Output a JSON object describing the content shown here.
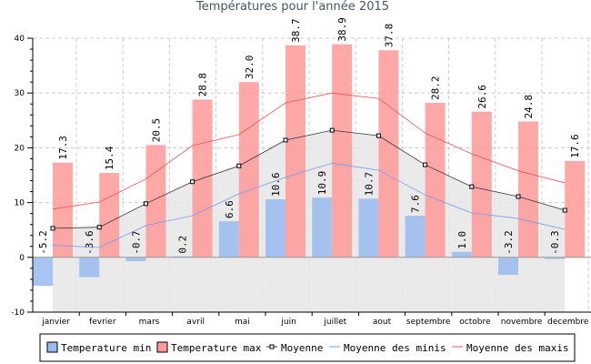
{
  "chart_data": {
    "type": "bar",
    "title": "Températures pour l'année 2015",
    "xlabel": "",
    "ylabel": "",
    "ylim": [
      -10,
      40
    ],
    "yticks": [
      "-10",
      "0",
      "10",
      "20",
      "30",
      "40"
    ],
    "grid": true,
    "legend_position": "bottom",
    "categories": [
      "janvier",
      "fevrier",
      "mars",
      "avril",
      "mai",
      "juin",
      "juillet",
      "aout",
      "septembre",
      "octobre",
      "novembre",
      "decembre"
    ],
    "series": [
      {
        "name": "Temperature min",
        "type": "bar",
        "color": "#99bbee",
        "values": [
          -5.2,
          -3.6,
          -0.7,
          0.2,
          6.6,
          10.6,
          10.9,
          10.7,
          7.6,
          1.0,
          -3.2,
          -0.3
        ],
        "labels": [
          "-5.2",
          "-3.6",
          "-0.7",
          "0.2",
          "6.6",
          "10.6",
          "10.9",
          "10.7",
          "7.6",
          "1.0",
          "-3.2",
          "-0.3"
        ]
      },
      {
        "name": "Temperature max",
        "type": "bar",
        "color": "#f99",
        "values": [
          17.3,
          15.4,
          20.5,
          28.8,
          32.0,
          38.7,
          38.9,
          37.8,
          28.2,
          26.6,
          24.8,
          17.6
        ],
        "labels": [
          "17.3",
          "15.4",
          "20.5",
          "28.8",
          "32.0",
          "38.7",
          "38.9",
          "37.8",
          "28.2",
          "26.6",
          "24.8",
          "17.6"
        ]
      },
      {
        "name": "Moyenne",
        "type": "line",
        "color": "#333",
        "values": [
          5.3,
          5.5,
          9.8,
          13.8,
          16.7,
          21.4,
          23.2,
          22.2,
          16.9,
          12.9,
          11.1,
          8.6
        ]
      },
      {
        "name": "Moyenne des minis",
        "type": "line",
        "color": "#7799ee",
        "values": [
          2.2,
          1.8,
          5.8,
          7.6,
          11.6,
          14.6,
          17.2,
          15.9,
          11.4,
          8.1,
          7.1,
          5.1
        ]
      },
      {
        "name": "Moyenne des maxis",
        "type": "line",
        "color": "#ee5555",
        "values": [
          8.8,
          10.1,
          14.3,
          20.4,
          22.4,
          28.2,
          30.0,
          29.0,
          22.7,
          18.9,
          15.8,
          13.6
        ]
      }
    ]
  }
}
